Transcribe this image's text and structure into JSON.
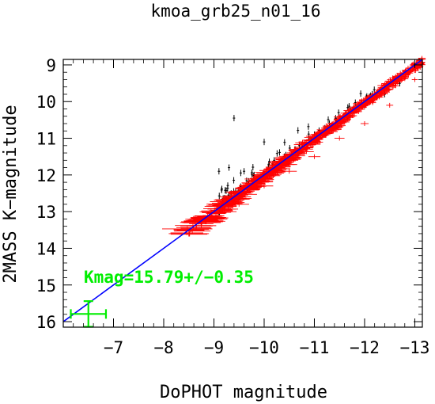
{
  "chart_data": {
    "type": "scatter",
    "title": "kmoa_grb25_n01_16",
    "xlabel": "DoPHOT magnitude",
    "ylabel": "2MASS K−magnitude",
    "xlim": [
      -6.0,
      -13.15
    ],
    "ylim": [
      16.15,
      8.85
    ],
    "x_ticks": [
      -7,
      -8,
      -9,
      -10,
      -11,
      -12,
      -13
    ],
    "x_tick_labels": [
      "−7",
      "−8",
      "−9",
      "−10",
      "−11",
      "−12",
      "−13"
    ],
    "y_ticks": [
      9,
      10,
      11,
      12,
      13,
      14,
      15,
      16
    ],
    "y_tick_labels": [
      "9",
      "10",
      "11",
      "12",
      "13",
      "14",
      "15",
      "16"
    ],
    "grid": false,
    "series": [
      {
        "color": "#ff0000",
        "marker": "errorbar",
        "description_points": [
          {
            "x": -8.5,
            "y": 13.6
          },
          {
            "x": -8.9,
            "y": 13.2
          },
          {
            "x": -9.2,
            "y": 13.0
          },
          {
            "x": -9.5,
            "y": 12.8
          },
          {
            "x": -10.0,
            "y": 12.3
          },
          {
            "x": -10.5,
            "y": 11.9
          },
          {
            "x": -11.0,
            "y": 11.5
          },
          {
            "x": -11.5,
            "y": 11.0
          },
          {
            "x": -12.0,
            "y": 10.6
          },
          {
            "x": -12.5,
            "y": 10.1
          },
          {
            "x": -13.0,
            "y": 9.4
          }
        ],
        "x_error": [
          0.4,
          0.3,
          0.25,
          0.2,
          0.18,
          0.15,
          0.12,
          0.1,
          0.08,
          0.07,
          0.06
        ],
        "y_error": [
          0.05,
          0.05,
          0.05,
          0.04,
          0.04,
          0.04,
          0.03,
          0.03,
          0.03,
          0.03,
          0.03
        ]
      },
      {
        "color": "#000000",
        "marker": "errorbar",
        "description_points": [
          {
            "x": -9.4,
            "y": 10.45
          },
          {
            "x": -9.1,
            "y": 11.9
          },
          {
            "x": -9.3,
            "y": 11.8
          },
          {
            "x": -9.6,
            "y": 11.9
          },
          {
            "x": -9.8,
            "y": 12.0
          },
          {
            "x": -10.0,
            "y": 11.1
          },
          {
            "x": -10.2,
            "y": 11.6
          },
          {
            "x": -10.4,
            "y": 11.5
          },
          {
            "x": -10.7,
            "y": 11.2
          },
          {
            "x": -11.0,
            "y": 10.9
          },
          {
            "x": -11.3,
            "y": 10.6
          },
          {
            "x": -11.6,
            "y": 10.4
          },
          {
            "x": -12.0,
            "y": 10.1
          },
          {
            "x": -12.4,
            "y": 9.8
          },
          {
            "x": -12.7,
            "y": 9.5
          }
        ]
      }
    ],
    "fit_line": {
      "color": "#0000ff",
      "slope": 1.0,
      "intercept": 22.0,
      "x_range": [
        -6.0,
        -13.15
      ]
    },
    "zero_point_marker": {
      "color": "#00ee00",
      "x": -6.5,
      "y": 15.79,
      "x_error": 0.35,
      "y_error": 0.35
    },
    "annotation": {
      "text": "Kmag=15.79+/−0.35",
      "color": "#00ee00"
    }
  }
}
